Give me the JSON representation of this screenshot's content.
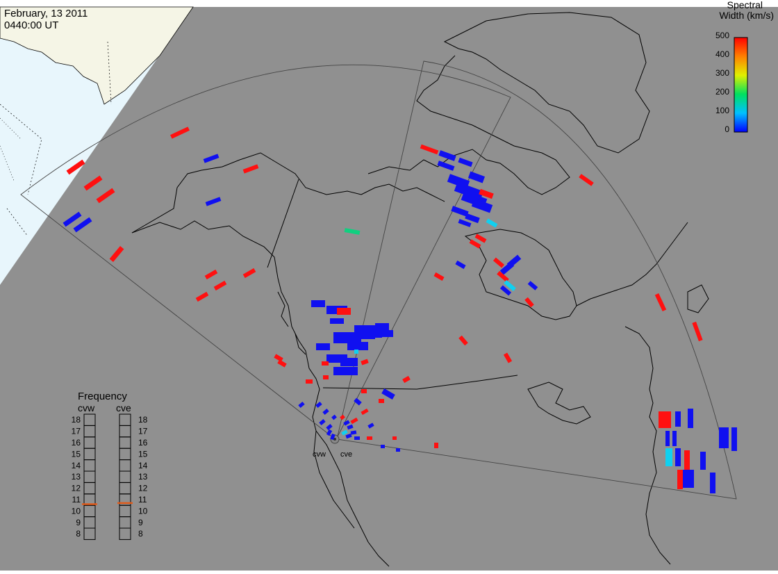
{
  "header": {
    "date": "February, 13 2011",
    "time": "0440:00 UT"
  },
  "colorbar": {
    "title_line1": "Spectral",
    "title_line2": "Width (km/s)",
    "ticks": [
      "500",
      "400",
      "300",
      "200",
      "100",
      "0"
    ],
    "range": [
      0,
      500
    ]
  },
  "frequency_panel": {
    "title": "Frequency",
    "radars": [
      {
        "name": "cvw",
        "value_mhz": 10.6
      },
      {
        "name": "cve",
        "value_mhz": 10.7
      }
    ],
    "ticks": [
      "18",
      "17",
      "16",
      "15",
      "14",
      "13",
      "12",
      "11",
      "10",
      "9",
      "8"
    ],
    "marker_color": "#e05a1a"
  },
  "radar_labels": [
    "cvw",
    "cve"
  ],
  "colors": {
    "ocean": "#909090",
    "daylight_ocean": "#e8f6fc",
    "daylight_land": "#f5f5e6",
    "coastline": "#000000",
    "fov_outline": "#444444",
    "echo_low": "#1010f0",
    "echo_cyan": "#10d0f0",
    "echo_green": "#10d080",
    "echo_high": "#ff1010"
  },
  "legend_note": ""
}
